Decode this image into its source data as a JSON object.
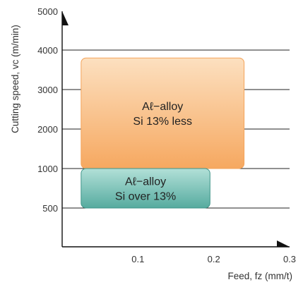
{
  "chart_data": {
    "type": "region-chart",
    "xlabel": "Feed, fz (mm/t)",
    "ylabel": "Cutting speed, vc (m/min)",
    "x_ticks": [
      {
        "value": 0.1,
        "label": "0.1"
      },
      {
        "value": 0.2,
        "label": "0.2"
      },
      {
        "value": 0.3,
        "label": "0.3"
      }
    ],
    "y_ticks": [
      {
        "value": 5000,
        "label": "5000",
        "grid": false
      },
      {
        "value": 4000,
        "label": "4000",
        "grid": true
      },
      {
        "value": 3000,
        "label": "3000",
        "grid": true
      },
      {
        "value": 2000,
        "label": "2000",
        "grid": true
      },
      {
        "value": 1000,
        "label": "1000",
        "grid": true
      },
      {
        "value": 500,
        "label": "500",
        "grid": true
      }
    ],
    "regions": [
      {
        "name": "al-alloy-si-13-less",
        "label_lines": [
          "Aℓ−alloy",
          "Si 13% less"
        ],
        "x_range": [
          0.025,
          0.24
        ],
        "y_range": [
          1000,
          3800
        ],
        "fill_top": "#fce0c0",
        "fill_bottom": "#f6a860",
        "stroke": "#f3a35a"
      },
      {
        "name": "al-alloy-si-over-13",
        "label_lines": [
          "Aℓ−alloy",
          "Si over 13%"
        ],
        "x_range": [
          0.025,
          0.195
        ],
        "y_range": [
          500,
          1000
        ],
        "fill_top": "#b2e0d8",
        "fill_bottom": "#56ab9f",
        "stroke": "#3f9488"
      }
    ],
    "grid": true,
    "colors": {
      "axis": "#111111",
      "grid": "#222222",
      "text": "#333333"
    }
  }
}
